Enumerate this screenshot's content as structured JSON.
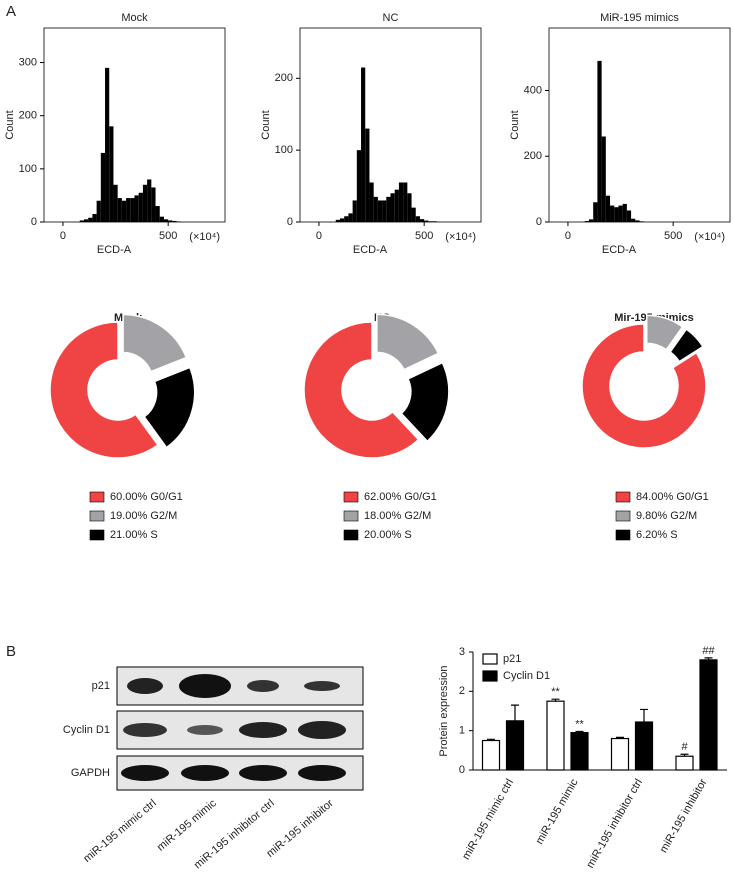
{
  "panels": [
    "A",
    "B"
  ],
  "blot": {
    "rows": [
      "p21",
      "Cyclin D1",
      "GAPDH"
    ],
    "lanes": [
      "miR-195 mimic ctrl",
      "miR-195 mimic",
      "miR-195 inhibitor ctrl",
      "miR-195 inhibitor"
    ]
  },
  "chart_data": [
    {
      "type": "histogram",
      "title": "Mock",
      "xlabel": "ECD-A",
      "x_unit": "(×10⁴)",
      "ylabel": "Count",
      "color": "#000000",
      "bins": [
        80,
        100,
        120,
        140,
        160,
        180,
        200,
        220,
        240,
        260,
        280,
        300,
        320,
        340,
        360,
        380,
        400,
        420,
        440,
        460,
        480,
        500,
        520,
        540,
        560,
        580
      ],
      "counts": [
        3,
        5,
        8,
        15,
        40,
        130,
        290,
        180,
        70,
        45,
        40,
        45,
        45,
        50,
        55,
        70,
        80,
        65,
        30,
        10,
        5,
        3,
        2,
        1,
        0
      ],
      "xlim": [
        -90,
        770
      ],
      "xticks": [
        0,
        500
      ],
      "ylim": [
        0,
        365
      ],
      "yticks": [
        0,
        100,
        200,
        300
      ]
    },
    {
      "type": "histogram",
      "title": "NC",
      "xlabel": "ECD-A",
      "x_unit": "(×10⁴)",
      "ylabel": "Count",
      "color": "#000000",
      "bins": [
        80,
        100,
        120,
        140,
        160,
        180,
        200,
        220,
        240,
        260,
        280,
        300,
        320,
        340,
        360,
        380,
        400,
        420,
        440,
        460,
        480,
        500,
        520,
        540,
        560,
        580
      ],
      "counts": [
        3,
        5,
        8,
        12,
        30,
        100,
        215,
        130,
        55,
        35,
        30,
        30,
        35,
        40,
        45,
        55,
        55,
        40,
        20,
        8,
        4,
        2,
        1,
        1,
        0
      ],
      "xlim": [
        -90,
        770
      ],
      "xticks": [
        0,
        500
      ],
      "ylim": [
        0,
        270
      ],
      "yticks": [
        0,
        100,
        200
      ]
    },
    {
      "type": "histogram",
      "title": "MiR-195 mimics",
      "xlabel": "ECD-A",
      "x_unit": "(×10⁴)",
      "ylabel": "Count",
      "color": "#000000",
      "bins": [
        80,
        100,
        120,
        140,
        160,
        180,
        200,
        220,
        240,
        260,
        280,
        300,
        320,
        340,
        360,
        380,
        400,
        420,
        440,
        460,
        480,
        500,
        520,
        540,
        560,
        580
      ],
      "counts": [
        3,
        8,
        60,
        490,
        260,
        80,
        50,
        45,
        50,
        55,
        35,
        10,
        5,
        2,
        0,
        0,
        0,
        0,
        0,
        0,
        0,
        0,
        0,
        0,
        0
      ],
      "xlim": [
        -90,
        770
      ],
      "xticks": [
        0,
        500
      ],
      "ylim": [
        0,
        590
      ],
      "yticks": [
        0,
        200,
        400
      ]
    },
    {
      "type": "donut",
      "title": "Mock",
      "categories": [
        "G0/G1",
        "G2/M",
        "S"
      ],
      "values": [
        60,
        19,
        21
      ],
      "value_labels": [
        "60.00%",
        "19.00%",
        "21.00%"
      ],
      "colors": [
        "#f04444",
        "#a3a3a7",
        "#000000"
      ]
    },
    {
      "type": "donut",
      "title": "NC",
      "categories": [
        "G0/G1",
        "G2/M",
        "S"
      ],
      "values": [
        62,
        18,
        20
      ],
      "value_labels": [
        "62.00%",
        "18.00%",
        "20.00%"
      ],
      "colors": [
        "#f04444",
        "#a3a3a7",
        "#000000"
      ]
    },
    {
      "type": "donut",
      "title": "Mir-195 mimics",
      "categories": [
        "G0/G1",
        "G2/M",
        "S"
      ],
      "values": [
        84,
        9.8,
        6.2
      ],
      "value_labels": [
        "84.00%",
        "9.80%",
        "6.20%"
      ],
      "colors": [
        "#f04444",
        "#a3a3a7",
        "#000000"
      ]
    },
    {
      "type": "bar",
      "ylabel": "Protein expression",
      "categories": [
        "miR-195 mimic ctrl",
        "miR-195 mimic",
        "miR-195 inhibitor ctrl",
        "miR-195 inhibitor"
      ],
      "series": [
        {
          "name": "p21",
          "color": "#ffffff",
          "values": [
            0.75,
            1.75,
            0.8,
            0.35
          ],
          "errors": [
            0.03,
            0.05,
            0.03,
            0.05
          ]
        },
        {
          "name": "Cyclin D1",
          "color": "#000000",
          "values": [
            1.25,
            0.95,
            1.22,
            2.8
          ],
          "errors": [
            0.4,
            0.03,
            0.32,
            0.05
          ]
        }
      ],
      "ylim": [
        0,
        3
      ],
      "yticks": [
        0,
        1,
        2,
        3
      ],
      "annotations": [
        "**",
        "**",
        "#",
        "##"
      ]
    }
  ]
}
